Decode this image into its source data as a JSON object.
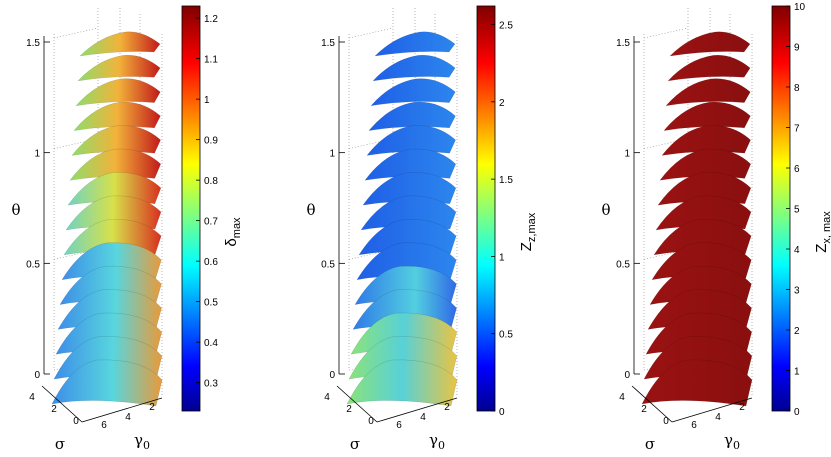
{
  "chart_data": [
    {
      "type": "surface3d",
      "panel": "left",
      "axes": {
        "z": {
          "label": "θ",
          "ticks": [
            "0",
            "0.5",
            "1",
            "1.5"
          ]
        },
        "sigma": {
          "label": "σ",
          "ticks": [
            "4",
            "2",
            "0"
          ]
        },
        "gamma": {
          "label": "γ",
          "label_sub": "0",
          "ticks": [
            "6",
            "4",
            "2"
          ]
        }
      },
      "slices": 15,
      "colorbar": {
        "label": "δ",
        "label_sub": "max",
        "min": 0.23,
        "max": 1.23,
        "ticks": [
          "0.3",
          "0.4",
          "0.5",
          "0.6",
          "0.7",
          "0.8",
          "0.9",
          "1",
          "1.1",
          "1.2"
        ],
        "tick_values": [
          0.3,
          0.4,
          0.5,
          0.6,
          0.7,
          0.8,
          0.9,
          1.0,
          1.1,
          1.2
        ]
      },
      "colormap": "jet"
    },
    {
      "type": "surface3d",
      "panel": "middle",
      "axes": {
        "z": {
          "label": "θ",
          "ticks": [
            "0",
            "0.5",
            "1",
            "1.5"
          ]
        },
        "sigma": {
          "label": "σ",
          "ticks": [
            "4",
            "2",
            "0"
          ]
        },
        "gamma": {
          "label": "γ",
          "label_sub": "0",
          "ticks": [
            "6",
            "4",
            "2"
          ]
        }
      },
      "slices": 15,
      "colorbar": {
        "label": "Z",
        "label_sub": "z,max",
        "min": 0,
        "max": 2.62,
        "ticks": [
          "0",
          "0.5",
          "1",
          "1.5",
          "2",
          "2.5"
        ],
        "tick_values": [
          0,
          0.5,
          1.0,
          1.5,
          2.0,
          2.5
        ]
      },
      "colormap": "jet"
    },
    {
      "type": "surface3d",
      "panel": "right",
      "axes": {
        "z": {
          "label": "θ",
          "ticks": [
            "0",
            "0.5",
            "1",
            "1.5"
          ]
        },
        "sigma": {
          "label": "σ",
          "ticks": [
            "4",
            "2",
            "0"
          ]
        },
        "gamma": {
          "label": "γ",
          "label_sub": "0",
          "ticks": [
            "6",
            "4",
            "2"
          ]
        }
      },
      "slices": 15,
      "colorbar": {
        "label": "Z",
        "label_sub": "x, max",
        "min": 0,
        "max": 10,
        "ticks": [
          "0",
          "1",
          "2",
          "3",
          "4",
          "5",
          "6",
          "7",
          "8",
          "9",
          "10"
        ],
        "tick_values": [
          0,
          1,
          2,
          3,
          4,
          5,
          6,
          7,
          8,
          9,
          10
        ]
      },
      "colormap": "jet"
    }
  ]
}
